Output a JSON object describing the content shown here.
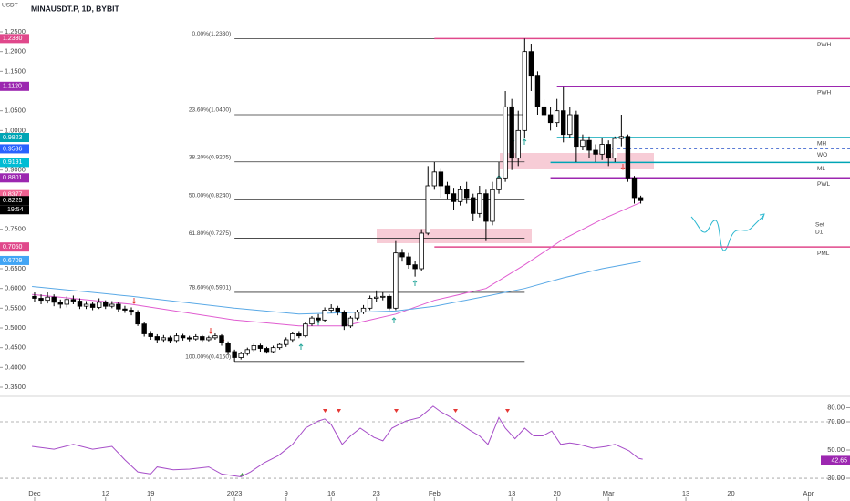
{
  "header": {
    "title": "MINAUSDT.P, 1D, BYBIT",
    "unit": "USDT"
  },
  "chart_data": [
    {
      "type": "candlestick",
      "xlim": [
        -5.37,
        126.45
      ],
      "ylim": [
        0.3292,
        1.3308
      ],
      "yticks": [
        {
          "value": 1.25,
          "label": "1.2500"
        },
        {
          "value": 1.2,
          "label": "1.2000"
        },
        {
          "value": 1.15,
          "label": "1.1500"
        },
        {
          "value": 1.05,
          "label": "1.0500"
        },
        {
          "value": 1.0,
          "label": "1.0000"
        },
        {
          "value": 0.9,
          "label": "0.9000"
        },
        {
          "value": 0.75,
          "label": "0.7500"
        },
        {
          "value": 0.65,
          "label": "0.6500"
        },
        {
          "value": 0.6,
          "label": "0.6000"
        },
        {
          "value": 0.55,
          "label": "0.5500"
        },
        {
          "value": 0.5,
          "label": "0.5000"
        },
        {
          "value": 0.45,
          "label": "0.4500"
        },
        {
          "value": 0.4,
          "label": "0.4000"
        },
        {
          "value": 0.35,
          "label": "0.3500"
        }
      ],
      "xticks": [
        {
          "value": 0,
          "label": "Dec"
        },
        {
          "value": 11,
          "label": "12"
        },
        {
          "value": 18,
          "label": "19"
        },
        {
          "value": 31,
          "label": "2023"
        },
        {
          "value": 39,
          "label": "9"
        },
        {
          "value": 46,
          "label": "16"
        },
        {
          "value": 53,
          "label": "23"
        },
        {
          "value": 62,
          "label": "Feb"
        },
        {
          "value": 74,
          "label": "13"
        },
        {
          "value": 81,
          "label": "20"
        },
        {
          "value": 89,
          "label": "Mar"
        },
        {
          "value": 101,
          "label": "13"
        },
        {
          "value": 108,
          "label": "20"
        },
        {
          "value": 120,
          "label": "Apr"
        }
      ],
      "up_color": "#ffffff",
      "down_color": "#000000",
      "open": [
        0.58,
        0.575,
        0.57,
        0.578,
        0.565,
        0.56,
        0.572,
        0.568,
        0.555,
        0.56,
        0.552,
        0.565,
        0.555,
        0.56,
        0.548,
        0.545,
        0.54,
        0.51,
        0.485,
        0.478,
        0.47,
        0.475,
        0.468,
        0.48,
        0.475,
        0.472,
        0.478,
        0.47,
        0.475,
        0.48,
        0.462,
        0.44,
        0.425,
        0.435,
        0.445,
        0.455,
        0.448,
        0.44,
        0.45,
        0.458,
        0.47,
        0.485,
        0.48,
        0.51,
        0.525,
        0.52,
        0.545,
        0.55,
        0.54,
        0.505,
        0.525,
        0.54,
        0.55,
        0.575,
        0.578,
        0.58,
        0.55,
        0.69,
        0.68,
        0.66,
        0.65,
        0.74,
        0.86,
        0.895,
        0.86,
        0.84,
        0.82,
        0.85,
        0.83,
        0.79,
        0.84,
        0.77,
        0.85,
        0.88,
        1.06,
        0.93,
        1.0,
        1.2,
        1.14,
        1.06,
        1.04,
        1.02,
        1.05,
        0.99,
        1.04,
        0.96,
        0.975,
        0.95,
        0.94,
        0.965,
        0.93,
        0.98,
        0.985,
        0.88,
        0.83
      ],
      "high": [
        0.59,
        0.585,
        0.59,
        0.585,
        0.572,
        0.58,
        0.582,
        0.575,
        0.568,
        0.566,
        0.575,
        0.57,
        0.568,
        0.565,
        0.556,
        0.552,
        0.545,
        0.515,
        0.492,
        0.484,
        0.482,
        0.48,
        0.486,
        0.485,
        0.48,
        0.484,
        0.482,
        0.48,
        0.486,
        0.484,
        0.466,
        0.445,
        0.44,
        0.45,
        0.46,
        0.46,
        0.452,
        0.455,
        0.462,
        0.476,
        0.49,
        0.492,
        0.515,
        0.53,
        0.535,
        0.552,
        0.56,
        0.556,
        0.545,
        0.53,
        0.546,
        0.558,
        0.582,
        0.595,
        0.59,
        0.585,
        0.72,
        0.7,
        0.69,
        0.67,
        0.75,
        0.91,
        0.92,
        0.905,
        0.87,
        0.855,
        0.86,
        0.87,
        0.84,
        0.86,
        0.85,
        0.87,
        0.92,
        1.1,
        1.08,
        1.05,
        1.233,
        1.22,
        1.15,
        1.08,
        1.06,
        1.08,
        1.112,
        1.06,
        1.05,
        0.99,
        0.985,
        0.965,
        0.98,
        0.975,
        0.985,
        1.04,
        0.99,
        0.885,
        0.835
      ],
      "low": [
        0.565,
        0.56,
        0.562,
        0.555,
        0.55,
        0.552,
        0.56,
        0.548,
        0.548,
        0.545,
        0.548,
        0.548,
        0.55,
        0.54,
        0.538,
        0.532,
        0.505,
        0.478,
        0.47,
        0.462,
        0.465,
        0.462,
        0.464,
        0.468,
        0.466,
        0.468,
        0.465,
        0.466,
        0.47,
        0.455,
        0.432,
        0.415,
        0.42,
        0.43,
        0.44,
        0.44,
        0.435,
        0.436,
        0.445,
        0.452,
        0.465,
        0.474,
        0.476,
        0.505,
        0.512,
        0.515,
        0.538,
        0.532,
        0.495,
        0.5,
        0.52,
        0.535,
        0.545,
        0.565,
        0.57,
        0.545,
        0.545,
        0.668,
        0.65,
        0.63,
        0.645,
        0.735,
        0.85,
        0.83,
        0.825,
        0.8,
        0.81,
        0.815,
        0.77,
        0.78,
        0.72,
        0.76,
        0.84,
        0.87,
        0.9,
        0.91,
        0.98,
        1.1,
        1.04,
        1.02,
        1.0,
        1.01,
        0.97,
        0.98,
        0.92,
        0.95,
        0.93,
        0.92,
        0.925,
        0.91,
        0.92,
        0.96,
        0.87,
        0.815,
        0.815
      ],
      "close": [
        0.575,
        0.57,
        0.578,
        0.565,
        0.56,
        0.572,
        0.568,
        0.555,
        0.56,
        0.552,
        0.565,
        0.555,
        0.56,
        0.548,
        0.545,
        0.54,
        0.51,
        0.485,
        0.478,
        0.47,
        0.475,
        0.468,
        0.48,
        0.475,
        0.472,
        0.478,
        0.47,
        0.475,
        0.48,
        0.462,
        0.44,
        0.425,
        0.435,
        0.445,
        0.455,
        0.448,
        0.44,
        0.45,
        0.458,
        0.47,
        0.485,
        0.48,
        0.51,
        0.525,
        0.52,
        0.545,
        0.55,
        0.54,
        0.505,
        0.525,
        0.54,
        0.55,
        0.575,
        0.578,
        0.58,
        0.55,
        0.69,
        0.68,
        0.66,
        0.65,
        0.74,
        0.86,
        0.895,
        0.86,
        0.84,
        0.82,
        0.85,
        0.83,
        0.79,
        0.84,
        0.77,
        0.85,
        0.88,
        1.06,
        0.93,
        1.0,
        1.2,
        1.14,
        1.06,
        1.04,
        1.02,
        1.05,
        0.99,
        1.04,
        0.96,
        0.975,
        0.95,
        0.94,
        0.965,
        0.93,
        0.98,
        0.985,
        0.88,
        0.83,
        0.8225
      ],
      "series": [
        {
          "color": "#e05cd0",
          "x": [
            -0.4,
            15,
            31,
            41,
            48,
            56,
            62,
            70,
            76,
            82,
            88,
            94
          ],
          "values": [
            0.585,
            0.56,
            0.52,
            0.505,
            0.505,
            0.535,
            0.57,
            0.6,
            0.66,
            0.725,
            0.775,
            0.818
          ]
        },
        {
          "color": "#5aa9e6",
          "x": [
            -0.4,
            9,
            15,
            31,
            41,
            56,
            62,
            70,
            76,
            82,
            88,
            94
          ],
          "values": [
            0.605,
            0.59,
            0.58,
            0.55,
            0.535,
            0.543,
            0.555,
            0.58,
            0.6,
            0.627,
            0.65,
            0.668
          ]
        }
      ],
      "fib_levels": [
        {
          "label": "0.00%(1.2330)",
          "value": 1.233
        },
        {
          "label": "23.60%(1.0400)",
          "value": 1.04
        },
        {
          "label": "38.20%(0.9205)",
          "value": 0.9205
        },
        {
          "label": "50.00%(0.8240)",
          "value": 0.824
        },
        {
          "label": "61.80%(0.7275)",
          "value": 0.7275
        },
        {
          "label": "78.60%(0.5901)",
          "value": 0.5901
        },
        {
          "label": "100.00%(0.4150)",
          "value": 0.415
        }
      ],
      "fib_x": [
        31,
        76
      ],
      "key_levels": [
        {
          "label": "PWH",
          "value": 1.233,
          "x0": 62,
          "color": "#e0488b"
        },
        {
          "label": "PWH",
          "value": 1.112,
          "x0": 81,
          "color": "#9c27b0"
        },
        {
          "label": "MH",
          "value": 0.9823,
          "x0": 81,
          "color": "#00a5b5"
        },
        {
          "label": "WO",
          "value": 0.9536,
          "x0": 88.7,
          "color": "#5b7bd5",
          "dashed": true
        },
        {
          "label": "ML",
          "value": 0.9191,
          "x0": 80,
          "color": "#00a5b5"
        },
        {
          "label": "PWL",
          "value": 0.8801,
          "x0": 80,
          "color": "#9c27b0"
        },
        {
          "label": "PML",
          "value": 0.705,
          "x0": 62,
          "color": "#e0488b"
        }
      ],
      "price_labels": [
        {
          "value": 1.233,
          "label": "1.2330",
          "color": "#e0488b"
        },
        {
          "value": 1.112,
          "label": "1.1120",
          "color": "#9c27b0"
        },
        {
          "value": 0.9823,
          "label": "0.9823",
          "color": "#00a5b5"
        },
        {
          "value": 0.9536,
          "label": "0.9536",
          "color": "#2962ff"
        },
        {
          "value": 0.9191,
          "label": "0.9191",
          "color": "#00bcd4"
        },
        {
          "value": 0.8801,
          "label": "0.8801",
          "color": "#9c27b0"
        },
        {
          "value": 0.8377,
          "label": "0.8377",
          "color": "#f06292"
        },
        {
          "value": 0.8225,
          "label": "0.8225",
          "color": "#000000"
        },
        {
          "value": 0.705,
          "label": "0.7050",
          "color": "#e0488b"
        },
        {
          "value": 0.6709,
          "label": "0.6709",
          "color": "#42a5f5"
        }
      ],
      "countdown": "19:54",
      "note": [
        "Set",
        "D1"
      ]
    },
    {
      "type": "line",
      "ylim": [
        15.2,
        87.4
      ],
      "yticks": [
        {
          "value": 80,
          "label": "80.00"
        },
        {
          "value": 70,
          "label": "70.00"
        },
        {
          "value": 50,
          "label": "50.00"
        },
        {
          "value": 30,
          "label": "30.00"
        }
      ],
      "bands": [
        70,
        30
      ],
      "color": "#a64dc8",
      "x": [
        -0.4,
        3,
        6,
        9,
        12,
        14,
        16,
        18,
        19,
        21.5,
        24,
        27,
        29,
        32,
        33.5,
        35.6,
        37.8,
        40,
        42,
        44,
        45,
        46,
        47.7,
        49,
        50.5,
        52.6,
        54,
        55.4,
        57.6,
        59.7,
        61.8,
        63,
        64.6,
        66,
        67.5,
        69,
        70.3,
        72,
        73,
        74.5,
        76,
        77.4,
        78.8,
        80.2,
        81.6,
        83,
        84.4,
        86.6,
        88.7,
        90,
        92.2,
        93.6,
        94.3
      ],
      "values": [
        52.6,
        50.6,
        54,
        50.6,
        52.6,
        43,
        34.5,
        33,
        38,
        36,
        36.5,
        38,
        33,
        31,
        34.5,
        41,
        46,
        54,
        65.5,
        70.6,
        72,
        68,
        54,
        60,
        65.5,
        59,
        56.5,
        65.5,
        70.6,
        73,
        81,
        77,
        73,
        68.7,
        64,
        60,
        54,
        73,
        65.5,
        58,
        65.5,
        60,
        60,
        63.5,
        54,
        55,
        54,
        51.3,
        52.6,
        54,
        49.4,
        44.2,
        43.5
      ],
      "last": {
        "value": 42.65,
        "label": "42.65",
        "color": "#9c27b0"
      }
    }
  ]
}
